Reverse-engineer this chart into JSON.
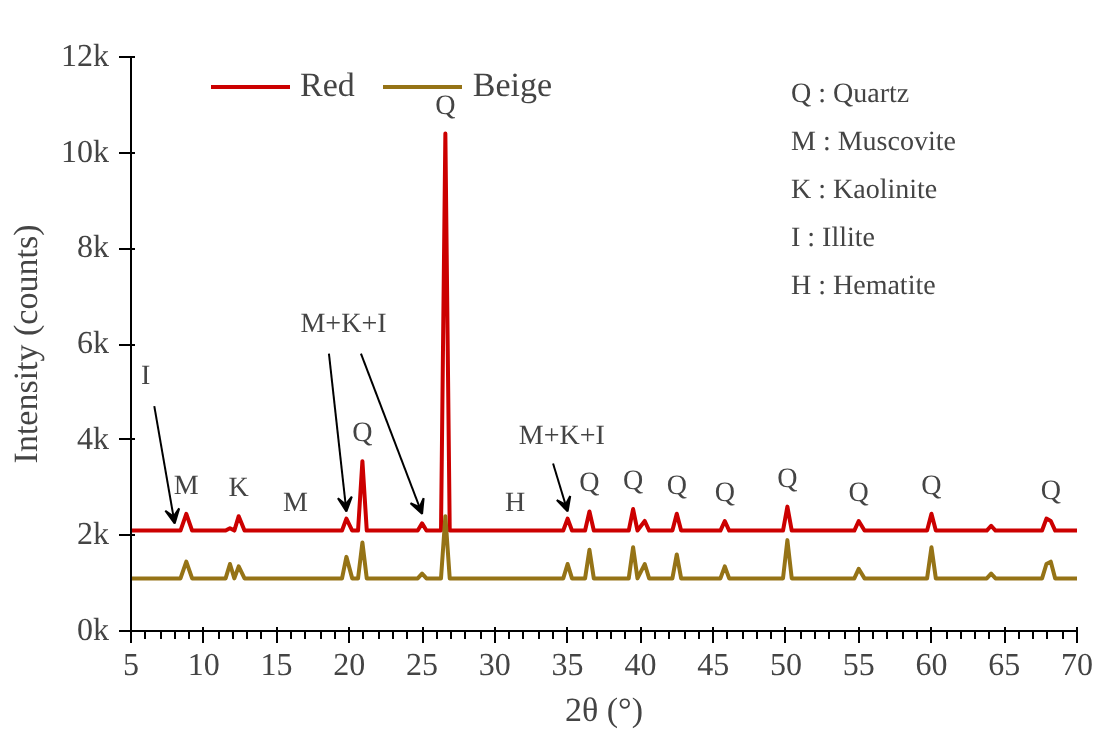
{
  "chart_data": {
    "type": "line",
    "xlabel": "2θ (°)",
    "ylabel": "Intensity (counts)",
    "x": [
      5,
      8.4,
      8.8,
      9.2,
      11.5,
      11.8,
      12.1,
      12.4,
      12.8,
      17.5,
      19.5,
      19.8,
      20.2,
      20.6,
      20.9,
      21.2,
      24.7,
      25.0,
      25.3,
      26.3,
      26.6,
      26.9,
      34.7,
      35.0,
      35.3,
      36.2,
      36.5,
      36.8,
      39.2,
      39.5,
      39.8,
      40.3,
      40.6,
      42.2,
      42.5,
      42.8,
      45.5,
      45.8,
      46.1,
      49.8,
      50.1,
      50.4,
      54.7,
      55.0,
      55.4,
      59.7,
      60.0,
      60.3,
      63.8,
      64.1,
      64.4,
      67.6,
      67.9,
      68.2,
      68.5,
      70
    ],
    "series": [
      {
        "name": "Red",
        "color": "#cc0000",
        "values": [
          2100,
          2100,
          2450,
          2100,
          2100,
          2150,
          2100,
          2400,
          2100,
          2100,
          2100,
          2350,
          2100,
          2100,
          3550,
          2100,
          2100,
          2250,
          2100,
          2100,
          10400,
          2100,
          2100,
          2350,
          2100,
          2100,
          2500,
          2100,
          2100,
          2550,
          2100,
          2300,
          2100,
          2100,
          2450,
          2100,
          2100,
          2300,
          2100,
          2100,
          2600,
          2100,
          2100,
          2300,
          2100,
          2100,
          2450,
          2100,
          2100,
          2200,
          2100,
          2100,
          2350,
          2300,
          2100,
          2100
        ]
      },
      {
        "name": "Beige",
        "color": "#957316",
        "values": [
          1100,
          1100,
          1450,
          1100,
          1100,
          1400,
          1100,
          1350,
          1100,
          1100,
          1100,
          1550,
          1100,
          1100,
          1850,
          1100,
          1100,
          1200,
          1100,
          1100,
          2400,
          1100,
          1100,
          1400,
          1100,
          1100,
          1700,
          1100,
          1100,
          1750,
          1100,
          1400,
          1100,
          1100,
          1600,
          1100,
          1100,
          1350,
          1100,
          1100,
          1900,
          1100,
          1100,
          1300,
          1100,
          1100,
          1750,
          1100,
          1100,
          1200,
          1100,
          1100,
          1400,
          1450,
          1100,
          1100
        ]
      }
    ],
    "xlim": [
      5,
      70
    ],
    "xticks": [
      5,
      10,
      15,
      20,
      25,
      30,
      35,
      40,
      45,
      50,
      55,
      60,
      65,
      70
    ],
    "ylim": [
      0,
      12000
    ],
    "yticks": [
      {
        "value": 0,
        "label": "0k"
      },
      {
        "value": 2000,
        "label": "2k"
      },
      {
        "value": 4000,
        "label": "4k"
      },
      {
        "value": 6000,
        "label": "6k"
      },
      {
        "value": 8000,
        "label": "8k"
      },
      {
        "value": 10000,
        "label": "10k"
      },
      {
        "value": 12000,
        "label": "12k"
      }
    ],
    "grid": false,
    "legend": "top",
    "line_style": "solid",
    "marker": "none",
    "annotations": [
      {
        "text": "I",
        "x": 8.0,
        "y": 2100
      },
      {
        "text": "M+K+I",
        "x": 19.8,
        "y": 2350
      },
      {
        "text": "M+K+I",
        "x": 35.0,
        "y": 2350
      },
      {
        "text": "M",
        "x": 8.8,
        "y": 2450
      },
      {
        "text": "K",
        "x": 12.4,
        "y": 2400
      },
      {
        "text": "M",
        "x": 16.3,
        "y": 2100
      },
      {
        "text": "Q",
        "x": 20.9,
        "y": 3550
      },
      {
        "text": "Q",
        "x": 26.6,
        "y": 10400
      },
      {
        "text": "H",
        "x": 31.4,
        "y": 2100
      },
      {
        "text": "Q",
        "x": 36.5,
        "y": 2500
      },
      {
        "text": "Q",
        "x": 39.5,
        "y": 2550
      },
      {
        "text": "Q",
        "x": 42.5,
        "y": 2450
      },
      {
        "text": "Q",
        "x": 45.8,
        "y": 2300
      },
      {
        "text": "Q",
        "x": 50.1,
        "y": 2600
      },
      {
        "text": "Q",
        "x": 55.0,
        "y": 2300
      },
      {
        "text": "Q",
        "x": 60.0,
        "y": 2450
      },
      {
        "text": "Q",
        "x": 68.2,
        "y": 2350
      },
      "Q : Quartz",
      "M : Muscovite",
      "K : Kaolinite",
      "I  : Illite",
      "H : Hematite"
    ]
  }
}
